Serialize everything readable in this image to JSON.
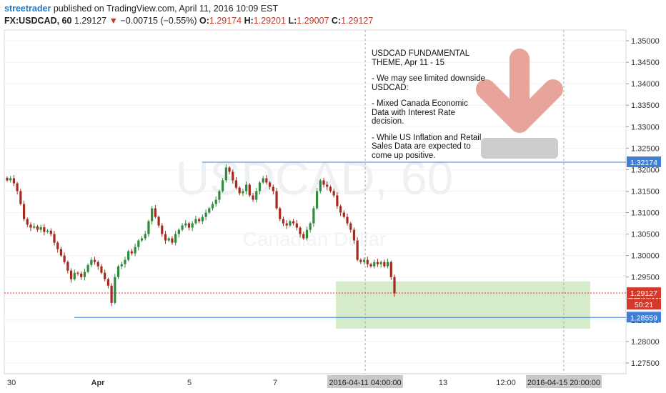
{
  "header": {
    "author": "streetrader",
    "published": "published on TradingView.com, April 11, 2016 10:09 EST",
    "symbol": "FX:USDCAD, 60",
    "last": "1.29127",
    "change": "−0.00715 (−0.55%)",
    "o_label": "O:",
    "o_value": "1.29174",
    "h_label": "H:",
    "h_value": "1.29201",
    "l_label": "L:",
    "l_value": "1.29007",
    "c_label": "C:",
    "c_value": "1.29127"
  },
  "watermark": {
    "symbol": "USDCAD, 60",
    "name": "Canadian Dollar"
  },
  "annotation": {
    "title": "USDCAD FUNDAMENTAL THEME, Apr 11 - 15",
    "points": [
      "- We may see limited downside USDCAD:",
      "- Mixed Canada Economic Data with Interest Rate decision.",
      "- While US Inflation and Retail Sales Data are expected to come up positive."
    ]
  },
  "colors": {
    "up_candle": "#2e8b3a",
    "down_candle": "#a52a1e",
    "level_line": "#3f7fd6",
    "price_line": "#d33a2c",
    "zone_fill": "#cfe8c0",
    "arrow": "#e8a49a",
    "grey_box": "#cccccc"
  },
  "chart_data": {
    "type": "candlestick",
    "y_axis": {
      "min": 1.2725,
      "max": 1.3525,
      "ticks": [
        "1.35000",
        "1.34500",
        "1.34000",
        "1.33500",
        "1.33000",
        "1.32500",
        "1.32000",
        "1.31500",
        "1.31000",
        "1.30500",
        "1.30000",
        "1.29500",
        "1.29000",
        "1.28500",
        "1.28000",
        "1.27500"
      ]
    },
    "x_axis": {
      "ticks": [
        "30",
        "Apr",
        "5",
        "7",
        "13",
        "12:00"
      ],
      "highlight_labels": [
        "2016-04-11 04:00:00",
        "2016-04-15 20:00:00"
      ]
    },
    "price_tags": [
      {
        "label": "1.32174",
        "value": 1.32174,
        "style": "level"
      },
      {
        "label": "1.29127",
        "value": 1.29127,
        "style": "last"
      },
      {
        "label": "50:21",
        "style": "countdown"
      },
      {
        "label": "1.28559",
        "value": 1.28559,
        "style": "level"
      }
    ],
    "resistance_level": 1.32174,
    "support_level": 1.28559,
    "last_price": 1.29127,
    "target_zone": {
      "from": 1.283,
      "to": 1.294
    },
    "series_closes": [
      1.3175,
      1.318,
      1.3168,
      1.315,
      1.312,
      1.3085,
      1.3072,
      1.3065,
      1.3068,
      1.306,
      1.3066,
      1.3055,
      1.3058,
      1.305,
      1.303,
      1.3015,
      1.3,
      1.2985,
      1.2965,
      1.2945,
      1.296,
      1.2958,
      1.295,
      1.2962,
      1.2978,
      1.299,
      1.2985,
      1.2975,
      1.296,
      1.2945,
      1.293,
      1.289,
      1.295,
      1.2975,
      1.298,
      1.299,
      1.301,
      1.3005,
      1.302,
      1.3035,
      1.304,
      1.305,
      1.308,
      1.311,
      1.309,
      1.307,
      1.305,
      1.3035,
      1.304,
      1.303,
      1.305,
      1.306,
      1.307,
      1.3075,
      1.3065,
      1.3075,
      1.3085,
      1.308,
      1.309,
      1.31,
      1.311,
      1.312,
      1.313,
      1.315,
      1.3175,
      1.3205,
      1.3195,
      1.3175,
      1.3158,
      1.3145,
      1.315,
      1.3165,
      1.314,
      1.313,
      1.315,
      1.317,
      1.318,
      1.317,
      1.316,
      1.315,
      1.311,
      1.3085,
      1.3075,
      1.307,
      1.308,
      1.3075,
      1.3065,
      1.305,
      1.304,
      1.306,
      1.3075,
      1.311,
      1.315,
      1.3175,
      1.3165,
      1.316,
      1.315,
      1.314,
      1.3115,
      1.31,
      1.309,
      1.3075,
      1.306,
      1.3035,
      1.299,
      1.2985,
      1.299,
      1.298,
      1.2975,
      1.2985,
      1.298,
      1.2985,
      1.2975,
      1.2985,
      1.295,
      1.2912
    ]
  }
}
